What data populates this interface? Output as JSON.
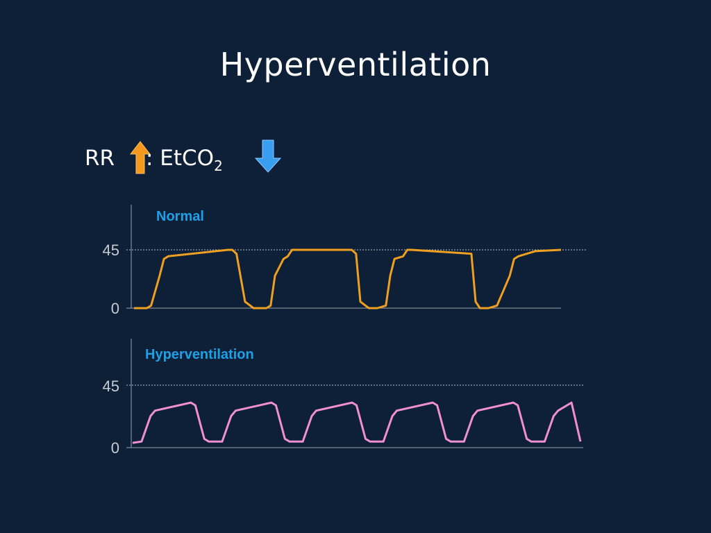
{
  "slide": {
    "title": "Hyperventilation",
    "rr_label": "RR",
    "etco2_prefix": ": EtCO",
    "etco2_sub": "2"
  },
  "icons": {
    "rr_arrow": "orange-up-arrow",
    "etco2_arrow": "blue-down-arrow"
  },
  "colors": {
    "background": "#0d2038",
    "normal_line": "#f0a020",
    "hyper_line": "#f090d0",
    "label_blue": "#1ea0e6",
    "arrow_up": "#f39a1e",
    "arrow_down": "#3a9ef0"
  },
  "chart_data": [
    {
      "type": "line",
      "title": "Normal",
      "yticks": [
        "45",
        "0"
      ],
      "ylim": [
        0,
        45
      ],
      "reference_line": 45,
      "cycles": 4,
      "series": [
        {
          "name": "Normal",
          "color": "#f0a020",
          "x": [
            0,
            0.03,
            0.04,
            0.06,
            0.07,
            0.08,
            0.22,
            0.23,
            0.24,
            0.26,
            0.28,
            0.31,
            0.32,
            0.33,
            0.35,
            0.36,
            0.37,
            0.51,
            0.52,
            0.53,
            0.55,
            0.57,
            0.59,
            0.6,
            0.61,
            0.63,
            0.64,
            0.65,
            0.79,
            0.8,
            0.81,
            0.83,
            0.85,
            0.88,
            0.89,
            0.9,
            0.92,
            0.93,
            0.94,
            1.0
          ],
          "y": [
            0,
            0,
            2,
            25,
            38,
            40,
            45,
            45,
            42,
            5,
            0,
            0,
            2,
            25,
            38,
            40,
            45,
            45,
            42,
            5,
            0,
            0,
            2,
            25,
            38,
            40,
            45,
            45,
            42,
            5,
            0,
            0,
            2,
            25,
            38,
            40,
            42,
            43,
            44,
            45
          ]
        }
      ]
    },
    {
      "type": "line",
      "title": "Hyperventilation",
      "yticks": [
        "45",
        "0"
      ],
      "ylim": [
        0,
        45
      ],
      "reference_line": 45,
      "cycles": 6,
      "series": [
        {
          "name": "Hyperventilation",
          "color": "#f090d0",
          "x": [
            0,
            0.02,
            0.04,
            0.05,
            0.13,
            0.14,
            0.16,
            0.17,
            0.2,
            0.22,
            0.23,
            0.31,
            0.32,
            0.34,
            0.35,
            0.38,
            0.4,
            0.41,
            0.49,
            0.5,
            0.52,
            0.53,
            0.56,
            0.58,
            0.59,
            0.67,
            0.68,
            0.7,
            0.71,
            0.74,
            0.76,
            0.77,
            0.85,
            0.86,
            0.88,
            0.89,
            0.92,
            0.94,
            0.95,
            0.98,
            1.0
          ],
          "y": [
            2,
            3,
            22,
            26,
            32,
            30,
            5,
            3,
            3,
            22,
            26,
            32,
            30,
            5,
            3,
            3,
            22,
            26,
            32,
            30,
            5,
            3,
            3,
            22,
            26,
            32,
            30,
            5,
            3,
            3,
            22,
            26,
            32,
            30,
            5,
            3,
            3,
            22,
            26,
            32,
            3
          ]
        }
      ]
    }
  ]
}
